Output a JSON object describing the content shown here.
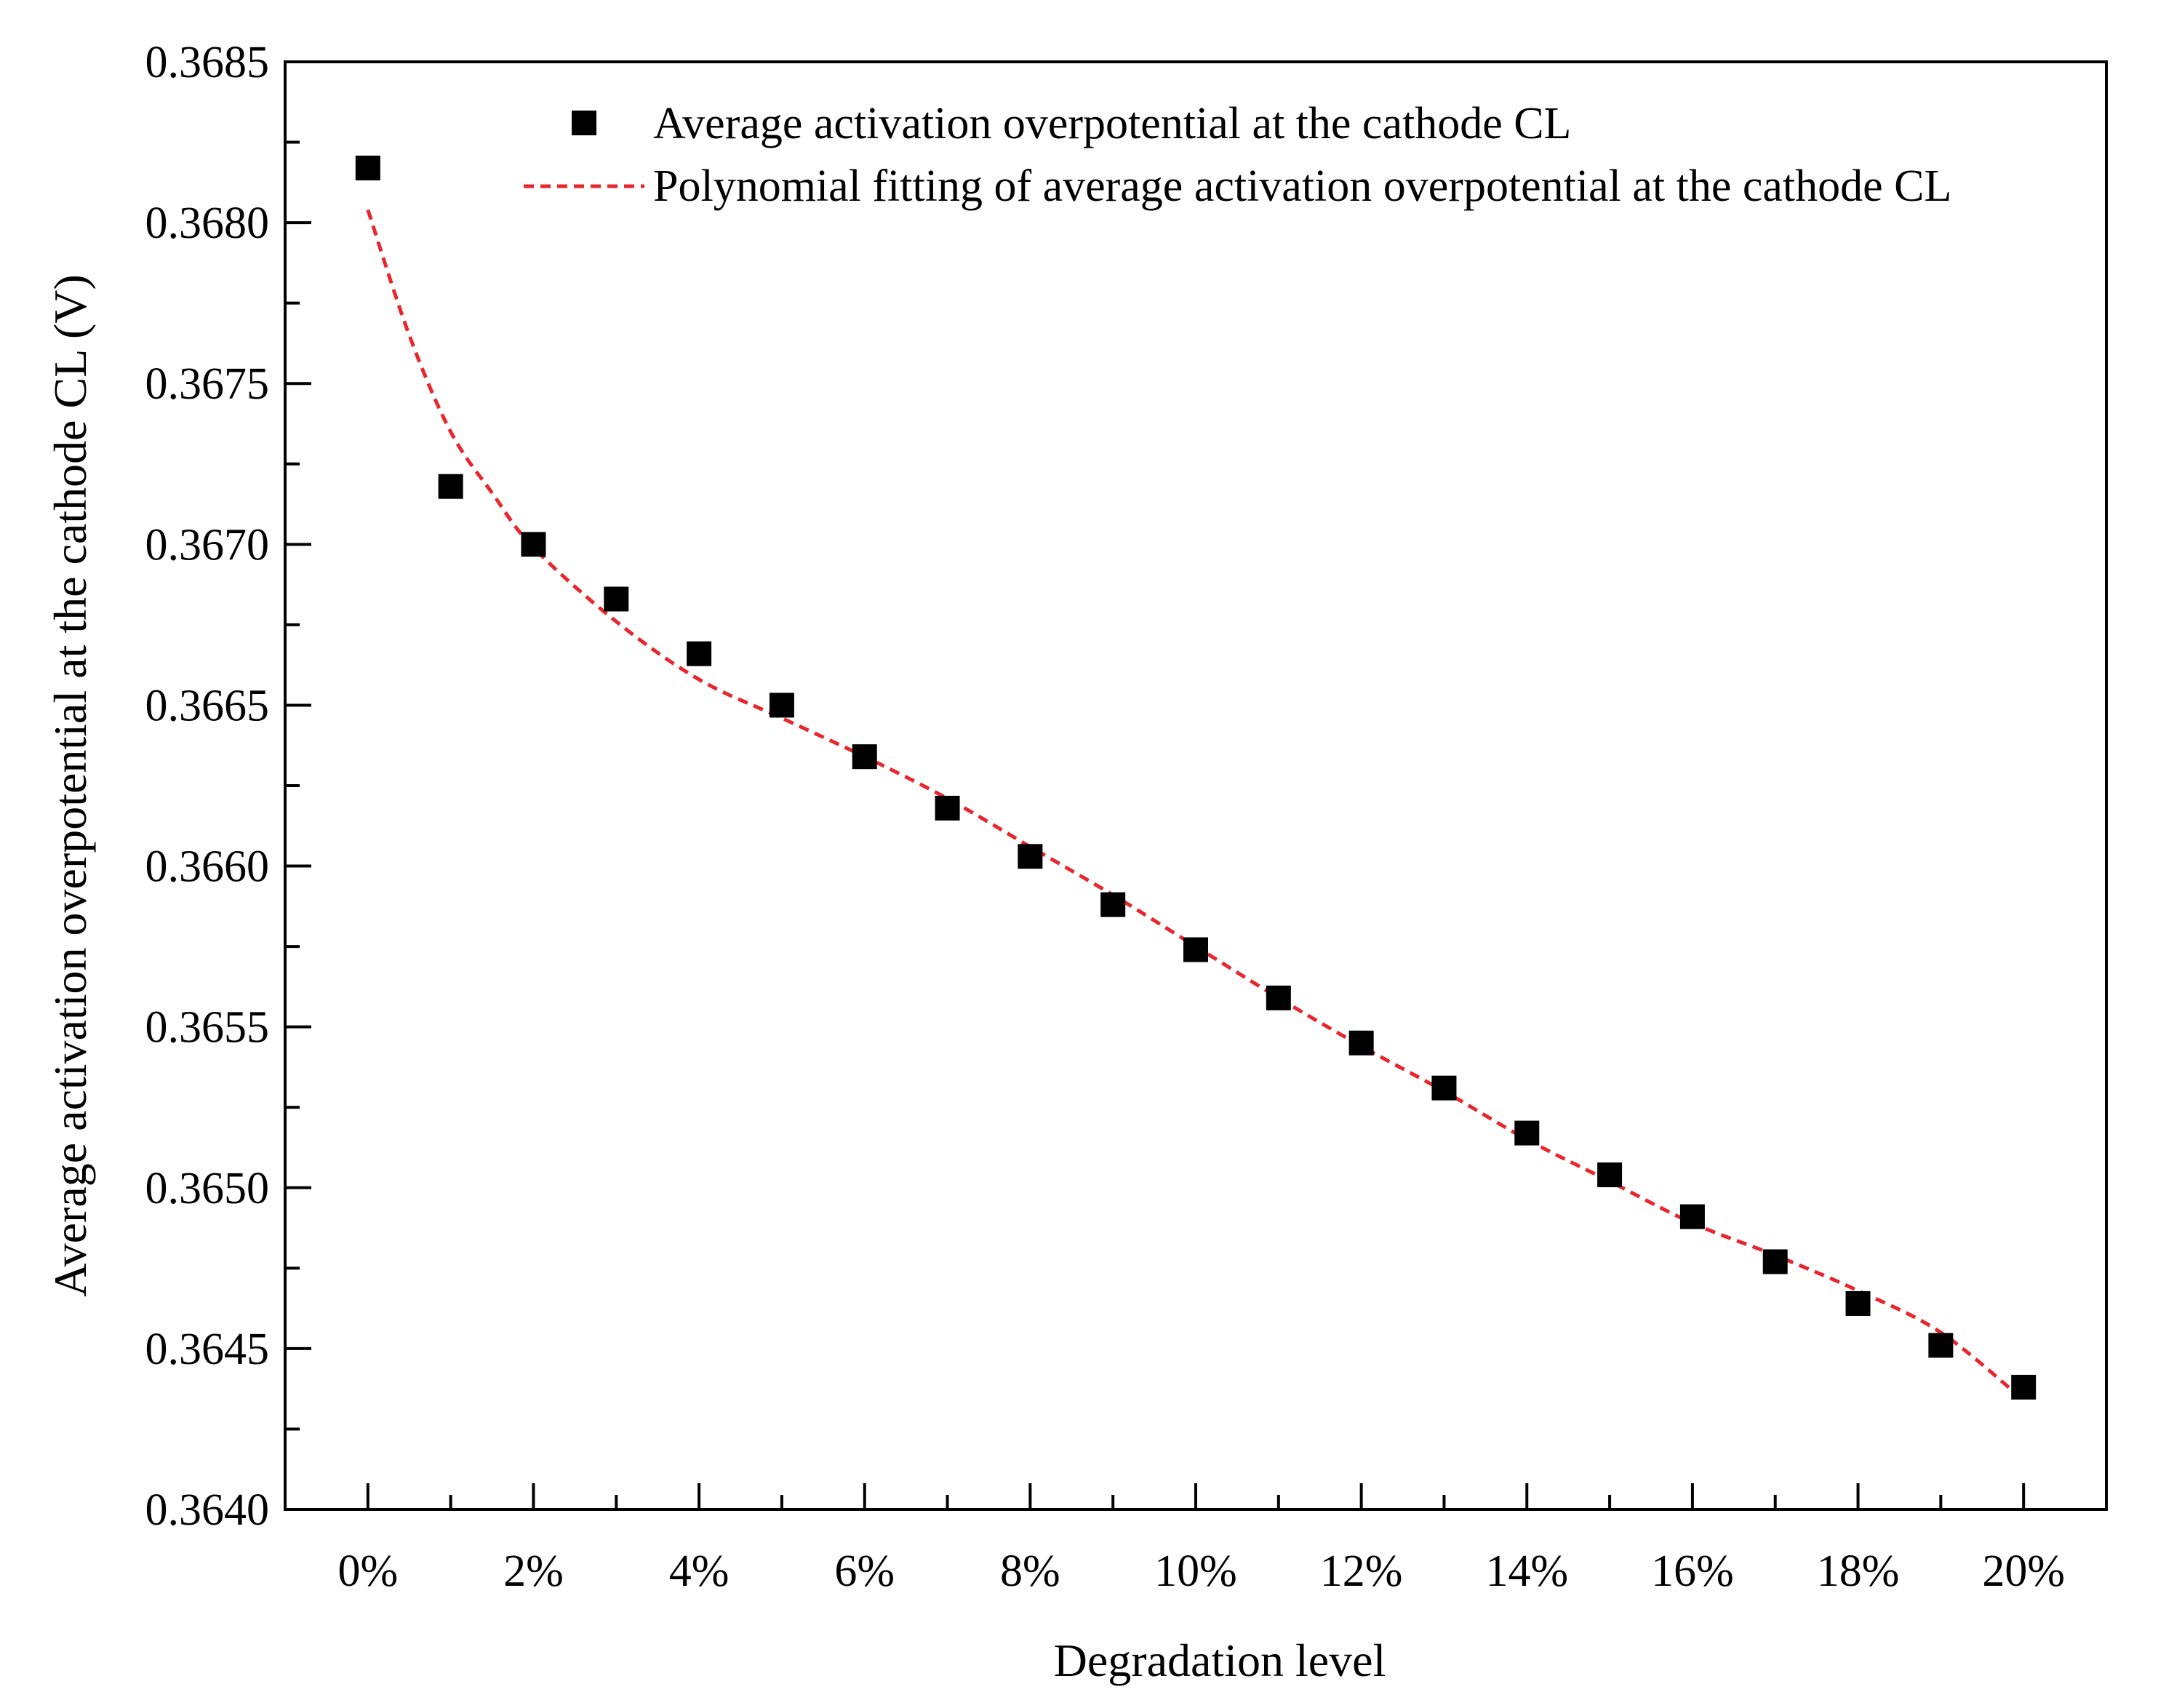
{
  "chart_data": {
    "type": "scatter",
    "title": "",
    "xlabel": "Degradation level",
    "ylabel": "Average activation overpotential at the cathode CL (V)",
    "xlim": [
      -1,
      21
    ],
    "ylim": [
      0.364,
      0.3685
    ],
    "x_ticks": [
      0,
      2,
      4,
      6,
      8,
      10,
      12,
      14,
      16,
      18,
      20
    ],
    "x_tick_labels": [
      "0%",
      "2%",
      "4%",
      "6%",
      "8%",
      "10%",
      "12%",
      "14%",
      "16%",
      "18%",
      "20%"
    ],
    "y_ticks": [
      0.364,
      0.3645,
      0.365,
      0.3655,
      0.366,
      0.3665,
      0.367,
      0.3675,
      0.368,
      0.3685
    ],
    "y_tick_labels": [
      "0.3640",
      "0.3645",
      "0.3650",
      "0.3655",
      "0.3660",
      "0.3665",
      "0.3670",
      "0.3675",
      "0.3680",
      "0.3685"
    ],
    "grid": false,
    "legend_position": "top-right",
    "series": [
      {
        "name": "Average activation overpotential at the cathode CL",
        "kind": "scatter",
        "marker": "square",
        "color": "#000000",
        "x": [
          0,
          1,
          2,
          3,
          4,
          5,
          6,
          7,
          8,
          9,
          10,
          11,
          12,
          13,
          14,
          15,
          16,
          17,
          18,
          19,
          20
        ],
        "y": [
          0.36817,
          0.36718,
          0.367,
          0.36683,
          0.36666,
          0.3665,
          0.36634,
          0.36618,
          0.36603,
          0.36588,
          0.36574,
          0.36559,
          0.36545,
          0.36531,
          0.36517,
          0.36504,
          0.36491,
          0.36477,
          0.36464,
          0.36451,
          0.36438
        ]
      },
      {
        "name": "Polynomial fitting of average activation overpotential at the cathode CL",
        "kind": "line",
        "style": "dashed",
        "color": "#e8262d",
        "x": [
          0,
          0.5,
          1,
          1.5,
          2,
          3,
          4,
          5,
          6,
          7,
          8,
          9,
          10,
          11,
          12,
          13,
          14,
          15,
          16,
          17,
          18,
          19,
          20
        ],
        "y": [
          0.36804,
          0.36765,
          0.36735,
          0.36716,
          0.36699,
          0.36676,
          0.36658,
          0.36646,
          0.36634,
          0.36621,
          0.36606,
          0.36591,
          0.36575,
          0.36559,
          0.36544,
          0.3653,
          0.36515,
          0.36502,
          0.36489,
          0.36479,
          0.36468,
          0.36455,
          0.36434
        ]
      }
    ]
  }
}
